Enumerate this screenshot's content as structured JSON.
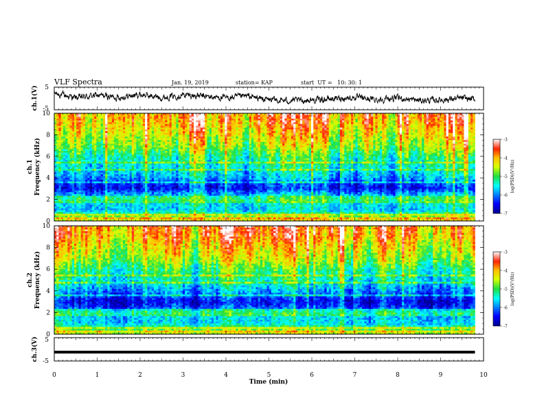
{
  "header": {
    "title": "VLF Spectra",
    "date": "Jan. 19, 2019",
    "station": "station= KAP",
    "start": "start  UT =   10: 30: 1"
  },
  "chart_data": [
    {
      "type": "line",
      "ylabel": "ch.1(V)",
      "xlim": [
        0,
        10
      ],
      "ylim": [
        -5,
        5
      ],
      "yticks": [
        "5",
        "-5"
      ],
      "x": [
        0,
        0.5,
        1,
        1.5,
        2,
        2.5,
        3,
        3.5,
        4,
        4.5,
        5,
        5.5,
        6,
        6.5,
        7,
        7.5,
        8,
        8.5,
        9,
        9.5,
        9.8
      ],
      "values": [
        2.3,
        0.3,
        1.4,
        0.5,
        1.7,
        0.4,
        1.6,
        0.9,
        0.2,
        1.0,
        -0.6,
        -1.0,
        -0.7,
        -0.1,
        0.4,
        -0.5,
        0.2,
        -0.9,
        -0.6,
        0.1,
        -0.4
      ]
    },
    {
      "type": "heatmap",
      "ylabel": "ch.1\nFrequency (kHz)",
      "xlim": [
        0,
        10
      ],
      "ylim": [
        0,
        10
      ],
      "yticks": [
        "0",
        "2",
        "4",
        "6",
        "8",
        "10"
      ],
      "data_xmax": 9.8,
      "colorbar": {
        "label": "log(PSD)(V²/Hz)",
        "range": [
          -7,
          -3
        ],
        "ticks": [
          "-3",
          "-4",
          "-5",
          "-6",
          "-7"
        ]
      },
      "profile_kHz": [
        0,
        0.5,
        1,
        1.5,
        2,
        2.5,
        3,
        3.5,
        4,
        5,
        6,
        7,
        8,
        9,
        10
      ],
      "profile_log_psd": [
        -4.0,
        -4.6,
        -5.6,
        -5.4,
        -5.5,
        -5.7,
        -6.4,
        -6.2,
        -5.7,
        -5.3,
        -5.0,
        -4.4,
        -4.1,
        -3.7,
        -3.5
      ]
    },
    {
      "type": "heatmap",
      "ylabel": "ch.2\nFrequency (kHz)",
      "xlim": [
        0,
        10
      ],
      "ylim": [
        0,
        10
      ],
      "yticks": [
        "0",
        "2",
        "4",
        "6",
        "8",
        "10"
      ],
      "data_xmax": 9.8,
      "colorbar": {
        "label": "log(PSD)(V²/Hz)",
        "range": [
          -7,
          -3
        ],
        "ticks": [
          "-3",
          "-4",
          "-5",
          "-6",
          "-7"
        ]
      },
      "profile_kHz": [
        0,
        0.5,
        1,
        1.5,
        2,
        2.5,
        3,
        3.5,
        4,
        5,
        6,
        7,
        8,
        9,
        10
      ],
      "profile_log_psd": [
        -4.3,
        -4.7,
        -5.5,
        -5.5,
        -5.6,
        -6.2,
        -6.5,
        -6.1,
        -5.8,
        -5.2,
        -4.9,
        -4.3,
        -4.0,
        -3.6,
        -3.4
      ]
    },
    {
      "type": "line",
      "ylabel": "ch.3(V)",
      "xlim": [
        0,
        10
      ],
      "ylim": [
        -5,
        5
      ],
      "yticks": [
        "5",
        "-5"
      ],
      "xlabel": "Time (min)",
      "xticks": [
        "0",
        "1",
        "2",
        "3",
        "4",
        "5",
        "6",
        "7",
        "8",
        "9",
        "10"
      ],
      "x": [
        0,
        9.8
      ],
      "values": [
        -1.2,
        -1.2
      ]
    }
  ]
}
